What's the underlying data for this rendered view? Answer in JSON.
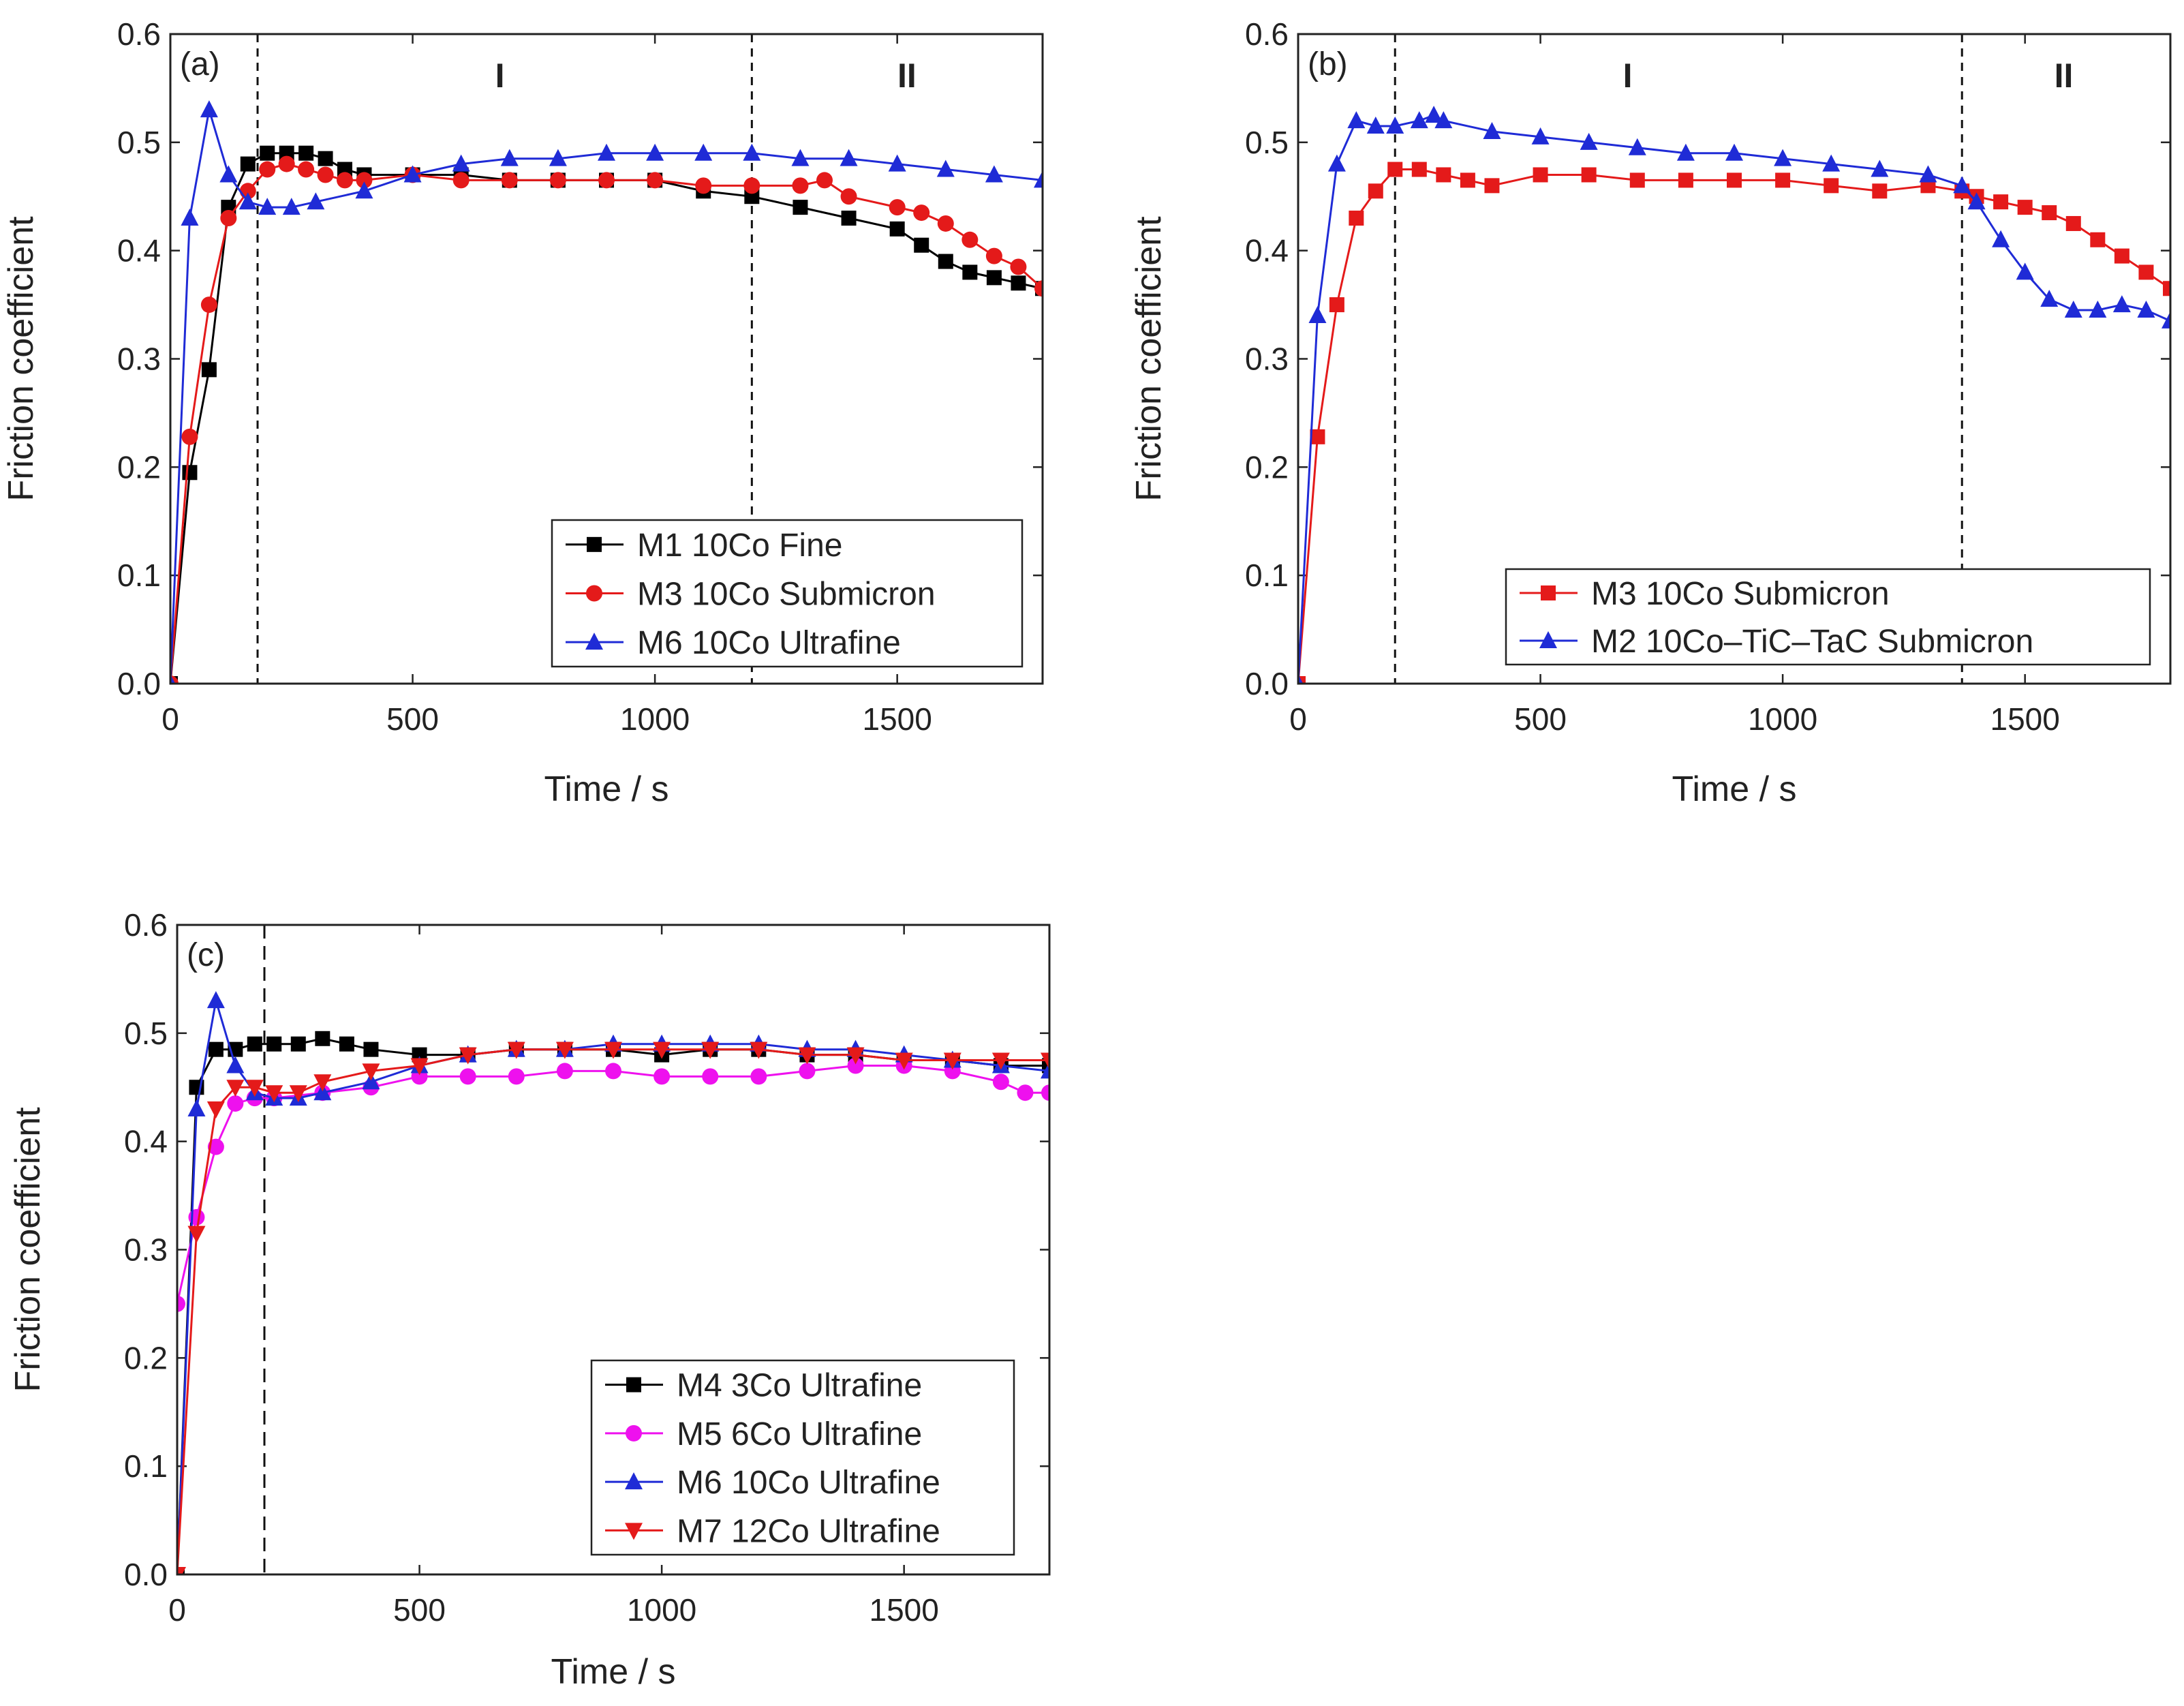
{
  "chart_data": [
    {
      "type": "line",
      "panel_label": "(a)",
      "xlabel": "Time / s",
      "ylabel": "Friction coefficient",
      "xlim": [
        0,
        1800
      ],
      "ylim": [
        0,
        0.6
      ],
      "xticks": [
        0,
        500,
        1000,
        1500
      ],
      "xtick_labels": [
        "0",
        "500",
        "1000",
        "1500"
      ],
      "yticks": [
        0,
        0.1,
        0.2,
        0.3,
        0.4,
        0.5,
        0.6
      ],
      "ytick_labels": [
        "0.0",
        "0.1",
        "0.2",
        "0.3",
        "0.4",
        "0.5",
        "0.6"
      ],
      "vlines": [
        180,
        1200
      ],
      "regions": [
        {
          "label": "I",
          "x": 680
        },
        {
          "label": "II",
          "x": 1520
        }
      ],
      "legend_position": "bottom-right",
      "series": [
        {
          "name": "M1 10Co Fine",
          "color": "#000000",
          "marker": "square",
          "x": [
            0,
            40,
            80,
            120,
            160,
            200,
            240,
            280,
            320,
            360,
            400,
            500,
            600,
            700,
            800,
            900,
            1000,
            1100,
            1200,
            1300,
            1400,
            1500,
            1550,
            1600,
            1650,
            1700,
            1750,
            1800
          ],
          "y": [
            0.0,
            0.195,
            0.29,
            0.44,
            0.48,
            0.49,
            0.49,
            0.49,
            0.485,
            0.475,
            0.47,
            0.47,
            0.47,
            0.465,
            0.465,
            0.465,
            0.465,
            0.455,
            0.45,
            0.44,
            0.43,
            0.42,
            0.405,
            0.39,
            0.38,
            0.375,
            0.37,
            0.365
          ]
        },
        {
          "name": "M3 10Co Submicron",
          "color": "#e41a1a",
          "marker": "circle",
          "x": [
            0,
            40,
            80,
            120,
            160,
            200,
            240,
            280,
            320,
            360,
            400,
            500,
            600,
            700,
            800,
            900,
            1000,
            1100,
            1200,
            1300,
            1350,
            1400,
            1500,
            1550,
            1600,
            1650,
            1700,
            1750,
            1800
          ],
          "y": [
            0.0,
            0.228,
            0.35,
            0.43,
            0.455,
            0.475,
            0.48,
            0.475,
            0.47,
            0.465,
            0.465,
            0.47,
            0.465,
            0.465,
            0.465,
            0.465,
            0.465,
            0.46,
            0.46,
            0.46,
            0.465,
            0.45,
            0.44,
            0.435,
            0.425,
            0.41,
            0.395,
            0.385,
            0.365
          ]
        },
        {
          "name": "M6 10Co Ultrafine",
          "color": "#1f2bd6",
          "marker": "triangle-up",
          "x": [
            0,
            40,
            80,
            120,
            160,
            200,
            250,
            300,
            400,
            500,
            600,
            700,
            800,
            900,
            1000,
            1100,
            1200,
            1300,
            1400,
            1500,
            1600,
            1700,
            1800
          ],
          "y": [
            0.0,
            0.43,
            0.53,
            0.47,
            0.445,
            0.44,
            0.44,
            0.445,
            0.455,
            0.47,
            0.48,
            0.485,
            0.485,
            0.49,
            0.49,
            0.49,
            0.49,
            0.485,
            0.485,
            0.48,
            0.475,
            0.47,
            0.465
          ]
        }
      ]
    },
    {
      "type": "line",
      "panel_label": "(b)",
      "xlabel": "Time / s",
      "ylabel": "Friction coefficient",
      "xlim": [
        0,
        1800
      ],
      "ylim": [
        0,
        0.6
      ],
      "xticks": [
        0,
        500,
        1000,
        1500
      ],
      "xtick_labels": [
        "0",
        "500",
        "1000",
        "1500"
      ],
      "yticks": [
        0,
        0.1,
        0.2,
        0.3,
        0.4,
        0.5,
        0.6
      ],
      "ytick_labels": [
        "0.0",
        "0.1",
        "0.2",
        "0.3",
        "0.4",
        "0.5",
        "0.6"
      ],
      "vlines": [
        200,
        1370
      ],
      "regions": [
        {
          "label": "I",
          "x": 680
        },
        {
          "label": "II",
          "x": 1580
        }
      ],
      "legend_position": "bottom-right",
      "series": [
        {
          "name": "M3 10Co Submicron",
          "color": "#e41a1a",
          "marker": "square",
          "x": [
            0,
            40,
            80,
            120,
            160,
            200,
            250,
            300,
            350,
            400,
            500,
            600,
            700,
            800,
            900,
            1000,
            1100,
            1200,
            1300,
            1370,
            1400,
            1450,
            1500,
            1550,
            1600,
            1650,
            1700,
            1750,
            1800
          ],
          "y": [
            0.0,
            0.228,
            0.35,
            0.43,
            0.455,
            0.475,
            0.475,
            0.47,
            0.465,
            0.46,
            0.47,
            0.47,
            0.465,
            0.465,
            0.465,
            0.465,
            0.46,
            0.455,
            0.46,
            0.455,
            0.45,
            0.445,
            0.44,
            0.435,
            0.425,
            0.41,
            0.395,
            0.38,
            0.365
          ]
        },
        {
          "name": "M2 10Co–TiC–TaC Submicron",
          "color": "#1f2bd6",
          "marker": "triangle-up",
          "x": [
            0,
            40,
            80,
            120,
            160,
            200,
            250,
            280,
            300,
            400,
            500,
            600,
            700,
            800,
            900,
            1000,
            1100,
            1200,
            1300,
            1370,
            1400,
            1450,
            1500,
            1550,
            1600,
            1650,
            1700,
            1750,
            1800
          ],
          "y": [
            0.0,
            0.34,
            0.48,
            0.52,
            0.515,
            0.515,
            0.52,
            0.525,
            0.52,
            0.51,
            0.505,
            0.5,
            0.495,
            0.49,
            0.49,
            0.485,
            0.48,
            0.475,
            0.47,
            0.46,
            0.445,
            0.41,
            0.38,
            0.355,
            0.345,
            0.345,
            0.35,
            0.345,
            0.335
          ]
        }
      ]
    },
    {
      "type": "line",
      "panel_label": "(c)",
      "xlabel": "Time / s",
      "ylabel": "Friction coefficient",
      "xlim": [
        0,
        1800
      ],
      "ylim": [
        0,
        0.6
      ],
      "xticks": [
        0,
        500,
        1000,
        1500
      ],
      "xtick_labels": [
        "0",
        "500",
        "1000",
        "1500"
      ],
      "yticks": [
        0,
        0.1,
        0.2,
        0.3,
        0.4,
        0.5,
        0.6
      ],
      "ytick_labels": [
        "0.0",
        "0.1",
        "0.2",
        "0.3",
        "0.4",
        "0.5",
        "0.6"
      ],
      "vlines": [
        180
      ],
      "regions": [],
      "legend_position": "bottom-right",
      "series": [
        {
          "name": "M4 3Co Ultrafine",
          "color": "#000000",
          "marker": "square",
          "x": [
            0,
            40,
            80,
            120,
            160,
            200,
            250,
            300,
            350,
            400,
            500,
            600,
            700,
            800,
            900,
            1000,
            1100,
            1200,
            1300,
            1400,
            1500,
            1600,
            1700,
            1800
          ],
          "y": [
            0.0,
            0.45,
            0.485,
            0.485,
            0.49,
            0.49,
            0.49,
            0.495,
            0.49,
            0.485,
            0.48,
            0.48,
            0.485,
            0.485,
            0.485,
            0.48,
            0.485,
            0.485,
            0.48,
            0.48,
            0.475,
            0.475,
            0.47,
            0.47
          ]
        },
        {
          "name": "M5 6Co Ultrafine",
          "color": "#ee11ee",
          "marker": "circle",
          "x": [
            0,
            40,
            80,
            120,
            160,
            200,
            300,
            400,
            500,
            600,
            700,
            800,
            900,
            1000,
            1100,
            1200,
            1300,
            1400,
            1500,
            1600,
            1700,
            1750,
            1800
          ],
          "y": [
            0.25,
            0.33,
            0.395,
            0.435,
            0.44,
            0.44,
            0.445,
            0.45,
            0.46,
            0.46,
            0.46,
            0.465,
            0.465,
            0.46,
            0.46,
            0.46,
            0.465,
            0.47,
            0.47,
            0.465,
            0.455,
            0.445,
            0.445
          ]
        },
        {
          "name": "M6 10Co Ultrafine",
          "color": "#1f2bd6",
          "marker": "triangle-up",
          "x": [
            0,
            40,
            80,
            120,
            160,
            200,
            250,
            300,
            400,
            500,
            600,
            700,
            800,
            900,
            1000,
            1100,
            1200,
            1300,
            1400,
            1500,
            1600,
            1700,
            1800
          ],
          "y": [
            0.0,
            0.43,
            0.53,
            0.47,
            0.445,
            0.44,
            0.44,
            0.445,
            0.455,
            0.47,
            0.48,
            0.485,
            0.485,
            0.49,
            0.49,
            0.49,
            0.49,
            0.485,
            0.485,
            0.48,
            0.475,
            0.47,
            0.465
          ]
        },
        {
          "name": "M7 12Co Ultrafine",
          "color": "#e41a1a",
          "marker": "triangle-down",
          "x": [
            0,
            40,
            80,
            120,
            160,
            200,
            250,
            300,
            400,
            500,
            600,
            700,
            800,
            900,
            1000,
            1100,
            1200,
            1300,
            1400,
            1500,
            1600,
            1700,
            1800
          ],
          "y": [
            0.0,
            0.315,
            0.43,
            0.45,
            0.45,
            0.445,
            0.445,
            0.455,
            0.465,
            0.47,
            0.48,
            0.485,
            0.485,
            0.485,
            0.485,
            0.485,
            0.485,
            0.48,
            0.48,
            0.475,
            0.475,
            0.475,
            0.475
          ]
        }
      ]
    }
  ]
}
